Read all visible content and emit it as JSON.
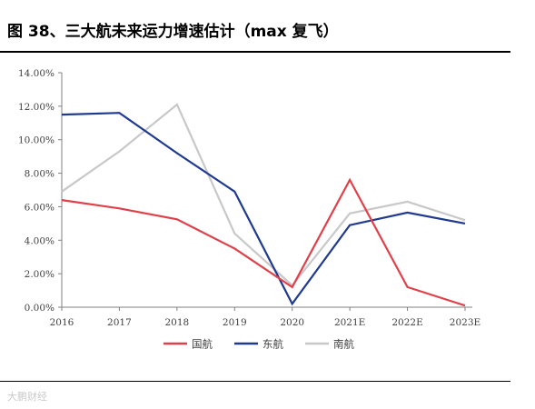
{
  "header": {
    "figure_title": "图 38、三大航未来运力增速估计（max 复飞）"
  },
  "source": {
    "watermark": "大鹏财经"
  },
  "chart_data": {
    "type": "line",
    "title": "",
    "xlabel": "",
    "ylabel": "",
    "categories": [
      "2016",
      "2017",
      "2018",
      "2019",
      "2020",
      "2021E",
      "2022E",
      "2023E"
    ],
    "ylim": [
      0,
      14
    ],
    "yticks": [
      "0.00%",
      "2.00%",
      "4.00%",
      "6.00%",
      "8.00%",
      "10.00%",
      "12.00%",
      "14.00%"
    ],
    "ytick_values": [
      0,
      2,
      4,
      6,
      8,
      10,
      12,
      14
    ],
    "grid": false,
    "legend_position": "bottom",
    "series": [
      {
        "name": "国航",
        "color": "#e0404a",
        "values": [
          6.4,
          5.9,
          5.25,
          3.5,
          1.2,
          7.6,
          1.2,
          0.1
        ]
      },
      {
        "name": "东航",
        "color": "#1f3a8f",
        "values": [
          11.5,
          11.6,
          9.2,
          6.9,
          0.2,
          4.9,
          5.65,
          5.0
        ]
      },
      {
        "name": "南航",
        "color": "#c8c8c8",
        "values": [
          6.9,
          9.3,
          12.1,
          4.4,
          1.3,
          5.6,
          6.3,
          5.2
        ]
      }
    ]
  }
}
